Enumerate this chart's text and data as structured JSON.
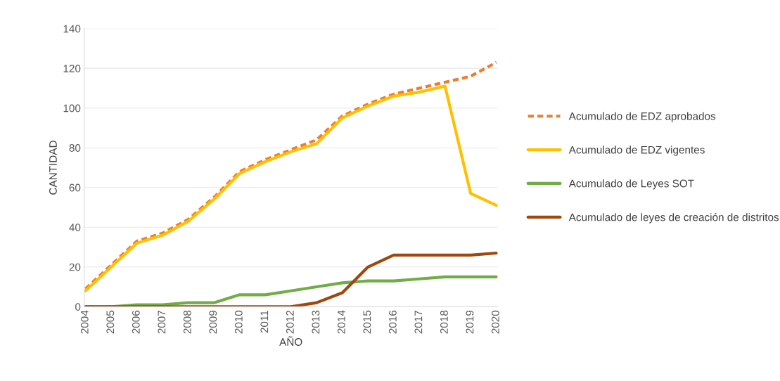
{
  "chart_data": {
    "type": "line",
    "xlabel": "AÑO",
    "ylabel": "CANTIDAD",
    "categories": [
      "2004",
      "2005",
      "2006",
      "2007",
      "2008",
      "2009",
      "2010",
      "2011",
      "2012",
      "2013",
      "2014",
      "2015",
      "2016",
      "2017",
      "2018",
      "2019",
      "2020"
    ],
    "series": [
      {
        "name": "Acumulado de EDZ aprobados",
        "color": "#ed7d31",
        "line_style": "dashed",
        "values": [
          9,
          21,
          33,
          37,
          44,
          55,
          68,
          74,
          79,
          84,
          96,
          102,
          107,
          110,
          113,
          116,
          123
        ]
      },
      {
        "name": "Acumulado de EDZ vigentes",
        "color": "#ffc000",
        "values": [
          8,
          20,
          32,
          36,
          43,
          54,
          67,
          73,
          78,
          82,
          95,
          101,
          106,
          108,
          111,
          57,
          51
        ]
      },
      {
        "name": "Acumulado de Leyes SOT",
        "color": "#70ad47",
        "values": [
          0,
          0,
          1,
          1,
          2,
          2,
          6,
          6,
          8,
          10,
          12,
          13,
          13,
          14,
          15,
          15,
          15
        ]
      },
      {
        "name": "Acumulado de leyes de creación de distritos",
        "color": "#9e480e",
        "values": [
          0,
          0,
          0,
          0,
          0,
          0,
          0,
          0,
          0,
          2,
          7,
          20,
          26,
          26,
          26,
          26,
          27
        ]
      }
    ],
    "ylim": [
      0,
      140
    ],
    "yticks": [
      0,
      20,
      40,
      60,
      80,
      100,
      120,
      140
    ],
    "grid": "y",
    "legend": "right",
    "marker": "none"
  }
}
